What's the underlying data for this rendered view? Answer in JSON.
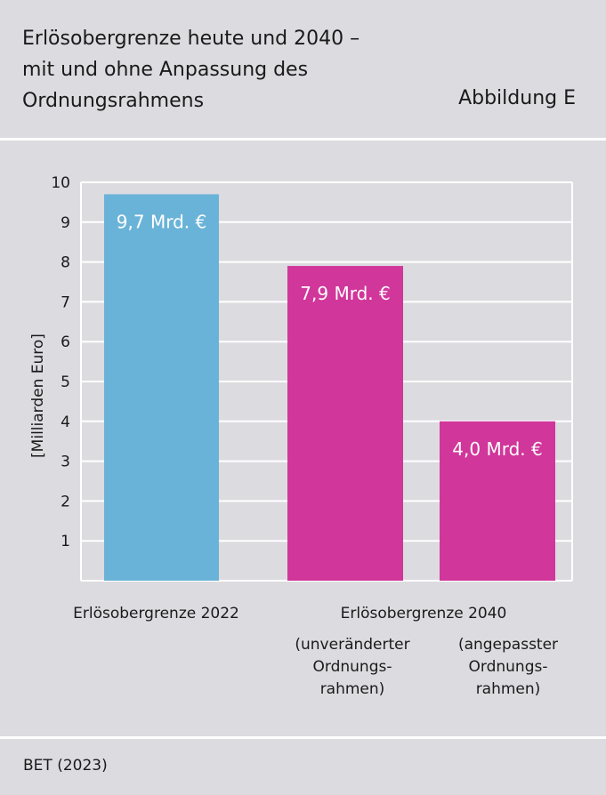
{
  "header": {
    "title_lines": [
      "Erlösobergrenze heute und 2040 –",
      "mit und ohne Anpassung des",
      "Ordnungsrahmens"
    ],
    "figure_label": "Abbildung E"
  },
  "source": "BET (2023)",
  "colors": {
    "background": "#dcdbe0",
    "grid": "#ffffff",
    "bar_2022": "#6ab3d8",
    "bar_2040": "#d1369a",
    "bar_label": "#ffffff"
  },
  "chart_data": {
    "type": "bar",
    "title": "Erlösobergrenze heute und 2040 – mit und ohne Anpassung des Ordnungsrahmens",
    "ylabel": "[Milliarden Euro]",
    "ylim": [
      0,
      10
    ],
    "yticks": [
      1,
      2,
      3,
      4,
      5,
      6,
      7,
      8,
      9,
      10
    ],
    "grid": true,
    "bars": [
      {
        "category": "Erlösobergrenze 2022",
        "sublabel": [],
        "value": 9.7,
        "label": "9,7 Mrd. €",
        "color": "#6ab3d8"
      },
      {
        "category": "Erlösobergrenze 2040",
        "sublabel": [
          "(unveränderter",
          "Ordnungs-",
          "rahmen)"
        ],
        "value": 7.9,
        "label": "7,9 Mrd. €",
        "color": "#d1369a"
      },
      {
        "category": "Erlösobergrenze 2040",
        "sublabel": [
          "(angepasster",
          "Ordnungs-",
          "rahmen)"
        ],
        "value": 4.0,
        "label": "4,0 Mrd. €",
        "color": "#d1369a"
      }
    ],
    "group_labels": [
      "Erlösobergrenze 2022",
      "Erlösobergrenze 2040"
    ]
  }
}
